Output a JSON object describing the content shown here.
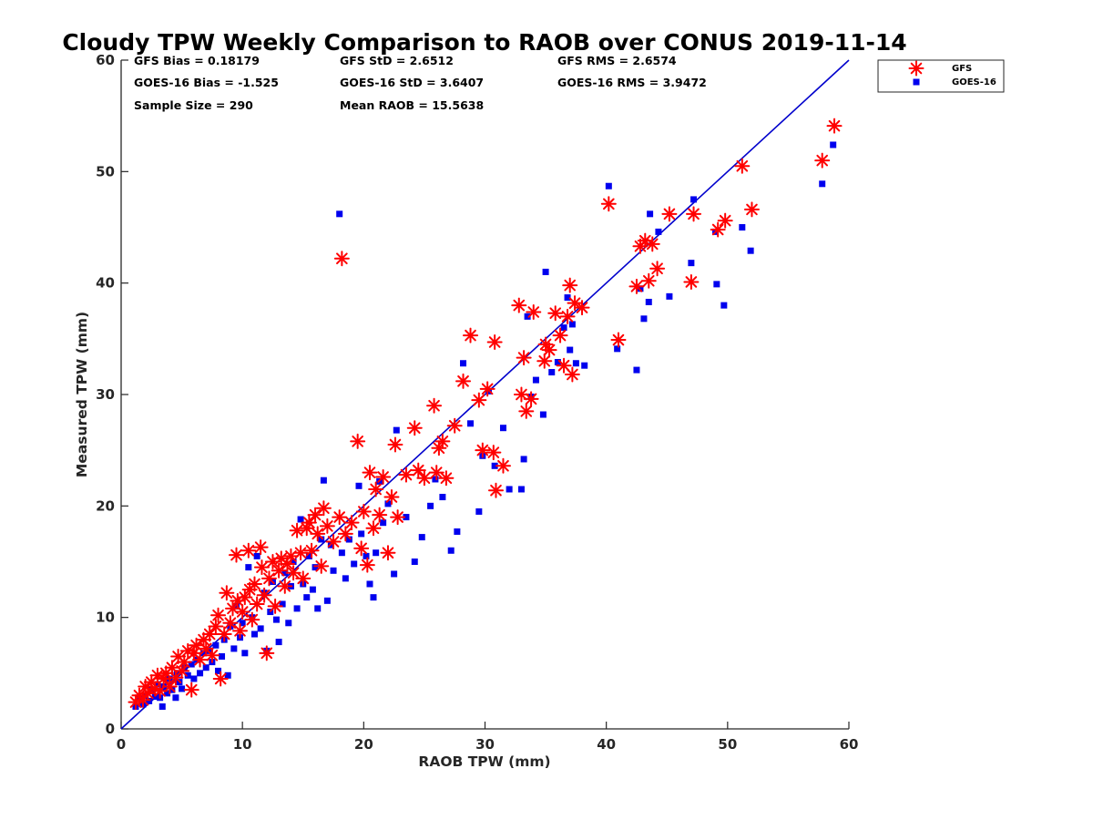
{
  "chart_data": {
    "type": "scatter",
    "title": "Cloudy TPW Weekly Comparison to RAOB over CONUS 2019-11-14",
    "xlabel": "RAOB TPW (mm)",
    "ylabel": "Measured TPW (mm)",
    "xlim": [
      0,
      60
    ],
    "ylim": [
      0,
      60
    ],
    "x_ticks": [
      "0",
      "10",
      "20",
      "30",
      "40",
      "50",
      "60"
    ],
    "y_ticks": [
      "0",
      "10",
      "20",
      "30",
      "40",
      "50",
      "60"
    ],
    "grid": false,
    "legend_position": "outside top-right",
    "reference_line": {
      "label": "",
      "x": [
        0,
        60
      ],
      "y": [
        0,
        60
      ],
      "color": "#0000cc"
    },
    "stats": {
      "gfs_bias": "GFS Bias = 0.18179",
      "goes_bias": "GOES-16 Bias = -1.525",
      "sample_size": "Sample Size = 290",
      "gfs_std": "GFS StD = 2.6512",
      "goes_std": "GOES-16 StD = 3.6407",
      "mean_raob": "Mean RAOB = 15.5638",
      "gfs_rms": "GFS RMS = 2.6574",
      "goes_rms": "GOES-16 RMS = 3.9472"
    },
    "series": [
      {
        "name": "GFS",
        "marker": "asterisk",
        "color": "#ff0000",
        "points": [
          [
            1.2,
            2.4
          ],
          [
            1.5,
            3.0
          ],
          [
            1.8,
            2.6
          ],
          [
            2.0,
            3.8
          ],
          [
            2.2,
            3.2
          ],
          [
            2.5,
            4.2
          ],
          [
            2.8,
            3.6
          ],
          [
            3.0,
            4.8
          ],
          [
            3.2,
            3.4
          ],
          [
            3.5,
            4.5
          ],
          [
            3.7,
            5.0
          ],
          [
            4.0,
            3.8
          ],
          [
            4.2,
            5.5
          ],
          [
            4.5,
            4.6
          ],
          [
            4.7,
            6.5
          ],
          [
            5.0,
            5.2
          ],
          [
            5.2,
            6.0
          ],
          [
            5.5,
            7.0
          ],
          [
            5.8,
            3.5
          ],
          [
            6.0,
            6.8
          ],
          [
            6.2,
            7.5
          ],
          [
            6.5,
            6.2
          ],
          [
            6.8,
            8.0
          ],
          [
            7.0,
            7.2
          ],
          [
            7.3,
            8.5
          ],
          [
            7.5,
            6.6
          ],
          [
            7.8,
            9.2
          ],
          [
            8.0,
            10.2
          ],
          [
            8.2,
            4.5
          ],
          [
            8.5,
            8.5
          ],
          [
            8.7,
            12.2
          ],
          [
            9.0,
            9.5
          ],
          [
            9.2,
            10.8
          ],
          [
            9.5,
            15.6
          ],
          [
            9.6,
            11.5
          ],
          [
            9.8,
            8.8
          ],
          [
            10.0,
            10.5
          ],
          [
            10.2,
            11.8
          ],
          [
            10.5,
            16.0
          ],
          [
            10.6,
            12.5
          ],
          [
            10.8,
            9.8
          ],
          [
            11.0,
            13.0
          ],
          [
            11.2,
            11.2
          ],
          [
            11.5,
            16.3
          ],
          [
            11.6,
            14.5
          ],
          [
            11.8,
            12.0
          ],
          [
            12.0,
            6.8
          ],
          [
            12.2,
            13.5
          ],
          [
            12.5,
            15.0
          ],
          [
            12.7,
            11.0
          ],
          [
            13.0,
            14.2
          ],
          [
            13.2,
            15.3
          ],
          [
            13.5,
            12.8
          ],
          [
            13.7,
            14.8
          ],
          [
            14.0,
            15.5
          ],
          [
            14.2,
            14.0
          ],
          [
            14.5,
            17.8
          ],
          [
            14.8,
            15.8
          ],
          [
            15.0,
            13.5
          ],
          [
            15.3,
            18.0
          ],
          [
            15.5,
            18.5
          ],
          [
            15.7,
            16.0
          ],
          [
            16.0,
            19.2
          ],
          [
            16.2,
            17.5
          ],
          [
            16.5,
            14.6
          ],
          [
            16.7,
            19.8
          ],
          [
            17.0,
            18.2
          ],
          [
            17.5,
            16.8
          ],
          [
            18.0,
            19.0
          ],
          [
            18.2,
            42.2
          ],
          [
            18.5,
            17.5
          ],
          [
            19.0,
            18.5
          ],
          [
            19.5,
            25.8
          ],
          [
            19.8,
            16.2
          ],
          [
            20.0,
            19.5
          ],
          [
            20.3,
            14.7
          ],
          [
            20.5,
            23.0
          ],
          [
            20.8,
            18.0
          ],
          [
            21.0,
            21.5
          ],
          [
            21.3,
            19.2
          ],
          [
            21.6,
            22.6
          ],
          [
            22.0,
            15.8
          ],
          [
            22.3,
            20.8
          ],
          [
            22.6,
            25.5
          ],
          [
            22.8,
            19.0
          ],
          [
            23.5,
            22.8
          ],
          [
            24.2,
            27.0
          ],
          [
            24.5,
            23.2
          ],
          [
            25.0,
            22.5
          ],
          [
            25.8,
            29.0
          ],
          [
            26.0,
            23.0
          ],
          [
            26.2,
            25.2
          ],
          [
            26.5,
            25.8
          ],
          [
            26.8,
            22.5
          ],
          [
            27.5,
            27.2
          ],
          [
            28.2,
            31.2
          ],
          [
            28.8,
            35.3
          ],
          [
            29.5,
            29.5
          ],
          [
            29.8,
            25.0
          ],
          [
            30.2,
            30.5
          ],
          [
            30.7,
            24.8
          ],
          [
            30.8,
            34.7
          ],
          [
            30.9,
            21.4
          ],
          [
            31.5,
            23.6
          ],
          [
            32.8,
            38.0
          ],
          [
            33.0,
            30.0
          ],
          [
            33.2,
            33.3
          ],
          [
            33.4,
            28.5
          ],
          [
            33.8,
            29.6
          ],
          [
            34.0,
            37.4
          ],
          [
            34.9,
            33.0
          ],
          [
            35.0,
            34.5
          ],
          [
            35.3,
            34.0
          ],
          [
            35.8,
            37.3
          ],
          [
            36.2,
            35.3
          ],
          [
            36.5,
            32.6
          ],
          [
            36.8,
            37.0
          ],
          [
            37.0,
            39.8
          ],
          [
            37.2,
            31.8
          ],
          [
            37.4,
            38.2
          ],
          [
            38.0,
            37.8
          ],
          [
            40.2,
            47.1
          ],
          [
            41.0,
            34.9
          ],
          [
            42.5,
            39.7
          ],
          [
            42.8,
            43.3
          ],
          [
            43.2,
            43.8
          ],
          [
            43.5,
            40.2
          ],
          [
            43.8,
            43.5
          ],
          [
            44.2,
            41.3
          ],
          [
            45.2,
            46.2
          ],
          [
            47.0,
            40.1
          ],
          [
            47.2,
            46.2
          ],
          [
            49.2,
            44.8
          ],
          [
            49.8,
            45.6
          ],
          [
            51.2,
            50.5
          ],
          [
            52.0,
            46.6
          ],
          [
            57.8,
            51.0
          ],
          [
            58.8,
            54.1
          ]
        ]
      },
      {
        "name": "GOES-16",
        "marker": "square",
        "color": "#0000ee",
        "points": [
          [
            1.2,
            2.0
          ],
          [
            1.5,
            2.8
          ],
          [
            1.8,
            2.2
          ],
          [
            2.0,
            3.0
          ],
          [
            2.3,
            2.5
          ],
          [
            2.5,
            3.5
          ],
          [
            2.8,
            2.9
          ],
          [
            3.0,
            4.0
          ],
          [
            3.2,
            2.8
          ],
          [
            3.4,
            2.0
          ],
          [
            3.5,
            3.8
          ],
          [
            3.8,
            3.2
          ],
          [
            4.0,
            4.5
          ],
          [
            4.2,
            3.5
          ],
          [
            4.5,
            2.8
          ],
          [
            4.6,
            5.0
          ],
          [
            4.8,
            4.2
          ],
          [
            5.0,
            3.6
          ],
          [
            5.2,
            5.5
          ],
          [
            5.5,
            4.8
          ],
          [
            5.8,
            5.8
          ],
          [
            6.0,
            4.5
          ],
          [
            6.3,
            6.2
          ],
          [
            6.5,
            5.0
          ],
          [
            6.8,
            6.8
          ],
          [
            7.0,
            5.5
          ],
          [
            7.3,
            7.0
          ],
          [
            7.5,
            6.0
          ],
          [
            7.8,
            7.5
          ],
          [
            8.0,
            5.2
          ],
          [
            8.3,
            6.5
          ],
          [
            8.5,
            8.0
          ],
          [
            8.8,
            4.8
          ],
          [
            9.0,
            9.2
          ],
          [
            9.3,
            7.2
          ],
          [
            9.5,
            11.0
          ],
          [
            9.8,
            8.2
          ],
          [
            10.0,
            9.5
          ],
          [
            10.2,
            6.8
          ],
          [
            10.5,
            14.5
          ],
          [
            10.8,
            10.0
          ],
          [
            11.0,
            8.5
          ],
          [
            11.2,
            15.5
          ],
          [
            11.5,
            9.0
          ],
          [
            11.8,
            12.2
          ],
          [
            12.0,
            7.0
          ],
          [
            12.3,
            10.5
          ],
          [
            12.5,
            13.2
          ],
          [
            12.8,
            9.8
          ],
          [
            13.0,
            7.8
          ],
          [
            13.3,
            11.2
          ],
          [
            13.5,
            14.0
          ],
          [
            13.8,
            9.5
          ],
          [
            14.0,
            12.8
          ],
          [
            14.2,
            15.0
          ],
          [
            14.5,
            10.8
          ],
          [
            14.8,
            18.8
          ],
          [
            15.0,
            13.0
          ],
          [
            15.3,
            11.8
          ],
          [
            15.5,
            15.5
          ],
          [
            15.8,
            12.5
          ],
          [
            16.0,
            14.5
          ],
          [
            16.2,
            10.8
          ],
          [
            16.5,
            17.0
          ],
          [
            16.7,
            22.3
          ],
          [
            17.0,
            11.5
          ],
          [
            17.3,
            16.5
          ],
          [
            17.5,
            14.2
          ],
          [
            18.0,
            46.2
          ],
          [
            18.2,
            15.8
          ],
          [
            18.5,
            13.5
          ],
          [
            18.8,
            17.0
          ],
          [
            19.2,
            14.8
          ],
          [
            19.6,
            21.8
          ],
          [
            19.8,
            17.5
          ],
          [
            20.2,
            15.5
          ],
          [
            20.5,
            13.0
          ],
          [
            20.8,
            11.8
          ],
          [
            21.0,
            15.8
          ],
          [
            21.3,
            22.2
          ],
          [
            21.6,
            18.5
          ],
          [
            22.0,
            20.2
          ],
          [
            22.5,
            13.9
          ],
          [
            22.7,
            26.8
          ],
          [
            23.5,
            19.0
          ],
          [
            24.2,
            15.0
          ],
          [
            24.8,
            17.2
          ],
          [
            25.5,
            20.0
          ],
          [
            25.9,
            22.4
          ],
          [
            26.5,
            20.8
          ],
          [
            27.2,
            16.0
          ],
          [
            27.7,
            17.7
          ],
          [
            28.2,
            32.8
          ],
          [
            28.8,
            27.4
          ],
          [
            29.5,
            19.5
          ],
          [
            29.8,
            24.5
          ],
          [
            30.3,
            30.3
          ],
          [
            30.8,
            23.6
          ],
          [
            31.5,
            27.0
          ],
          [
            32.0,
            21.5
          ],
          [
            33.0,
            21.5
          ],
          [
            33.2,
            24.2
          ],
          [
            33.5,
            37.0
          ],
          [
            33.8,
            29.8
          ],
          [
            34.2,
            31.3
          ],
          [
            34.8,
            28.2
          ],
          [
            35.0,
            41.0
          ],
          [
            35.5,
            32.0
          ],
          [
            36.0,
            32.9
          ],
          [
            36.5,
            36.0
          ],
          [
            36.8,
            38.7
          ],
          [
            37.0,
            34.0
          ],
          [
            37.2,
            36.3
          ],
          [
            37.5,
            32.8
          ],
          [
            38.2,
            32.6
          ],
          [
            40.2,
            48.7
          ],
          [
            40.9,
            34.1
          ],
          [
            42.5,
            32.2
          ],
          [
            42.8,
            39.5
          ],
          [
            43.1,
            36.8
          ],
          [
            43.5,
            38.3
          ],
          [
            43.6,
            46.2
          ],
          [
            44.3,
            44.6
          ],
          [
            45.2,
            38.8
          ],
          [
            47.0,
            41.8
          ],
          [
            47.2,
            47.5
          ],
          [
            49.0,
            44.6
          ],
          [
            49.1,
            39.9
          ],
          [
            49.7,
            38.0
          ],
          [
            51.2,
            45.0
          ],
          [
            51.9,
            42.9
          ],
          [
            57.8,
            48.9
          ],
          [
            58.7,
            52.4
          ]
        ]
      }
    ]
  }
}
